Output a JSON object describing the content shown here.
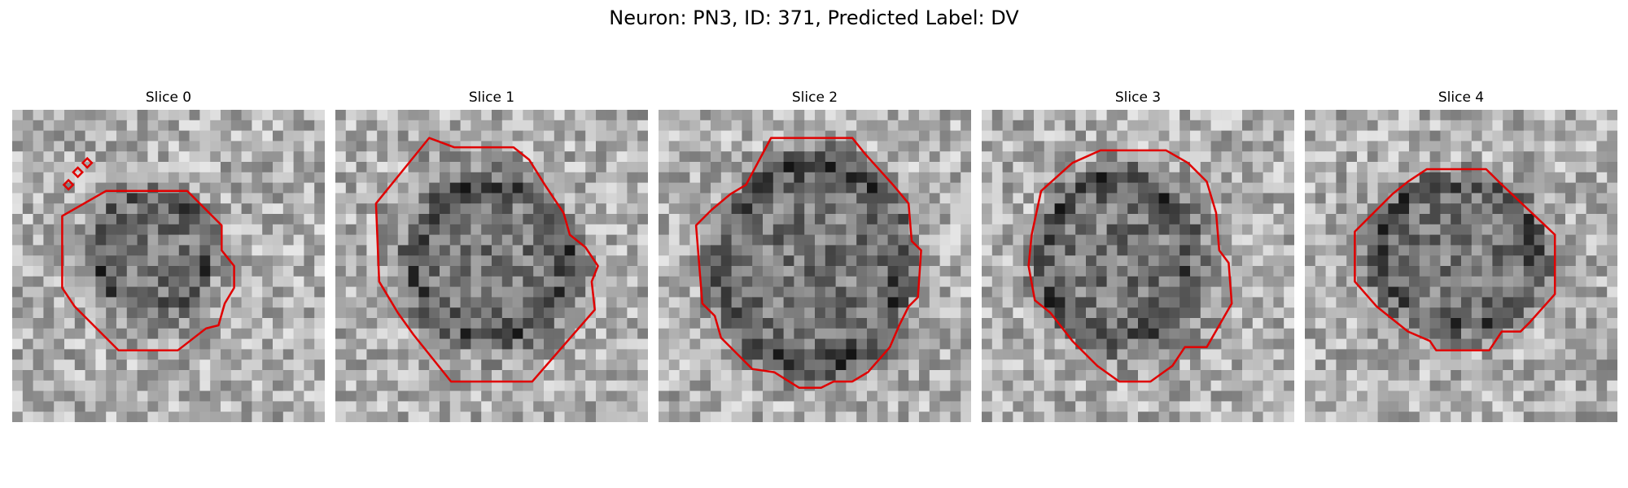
{
  "figure": {
    "title": "Neuron: PN3, ID: 371, Predicted Label: DV"
  },
  "contour_color": "#e00000",
  "slices": [
    {
      "label": "Slice 0"
    },
    {
      "label": "Slice 1"
    },
    {
      "label": "Slice 2"
    },
    {
      "label": "Slice 3"
    },
    {
      "label": "Slice 4"
    }
  ]
}
